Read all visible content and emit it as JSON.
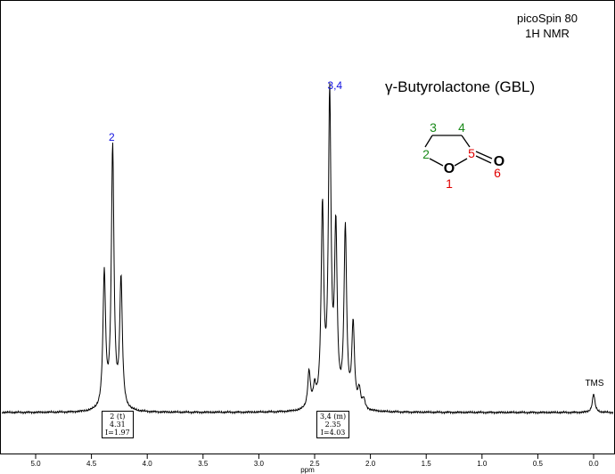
{
  "instrument": {
    "line1": "picoSpin 80",
    "line2": "1H NMR"
  },
  "compound": {
    "name": "γ-Butyrolactone (GBL)"
  },
  "structure": {
    "atoms": [
      {
        "label": "1",
        "color": "#e00000"
      },
      {
        "label": "2",
        "color": "#1a8a1a"
      },
      {
        "label": "3",
        "color": "#1a8a1a"
      },
      {
        "label": "4",
        "color": "#1a8a1a"
      },
      {
        "label": "5",
        "color": "#e00000"
      },
      {
        "label": "6",
        "color": "#e00000"
      }
    ],
    "ring_oxygen": "O",
    "carbonyl_oxygen": "O"
  },
  "peak_labels": [
    {
      "label": "2",
      "color": "#1010e0",
      "ppm": 4.31
    },
    {
      "label": "3,4",
      "color": "#1010e0",
      "ppm": 2.35
    },
    {
      "label": "TMS",
      "color": "#000000",
      "ppm": 0.0
    }
  ],
  "integrations": [
    {
      "line1": "2 (t)",
      "line2": "4.31",
      "line3": "I=1.97",
      "ppm": 4.31
    },
    {
      "line1": "3,4 (m)",
      "line2": "2.35",
      "line3": "I=4.03",
      "ppm": 2.35
    }
  ],
  "chart_data": {
    "type": "line",
    "title": "",
    "xlabel": "ppm",
    "ylabel": "",
    "xlim": [
      5.2,
      -0.1
    ],
    "x_reversed": true,
    "xticks": [
      "5.0",
      "4.5",
      "4.0",
      "3.5",
      "3.0",
      "2.5",
      "2.0",
      "1.5",
      "1.0",
      "0.5",
      "0.0"
    ],
    "series": [
      {
        "peaks": [
          {
            "ppm": 4.385,
            "height": 0.44
          },
          {
            "ppm": 4.31,
            "height": 0.85
          },
          {
            "ppm": 4.235,
            "height": 0.42
          },
          {
            "ppm": 2.55,
            "height": 0.12
          },
          {
            "ppm": 2.5,
            "height": 0.06
          },
          {
            "ppm": 2.43,
            "height": 0.64
          },
          {
            "ppm": 2.365,
            "height": 1.0
          },
          {
            "ppm": 2.31,
            "height": 0.56
          },
          {
            "ppm": 2.225,
            "height": 0.58
          },
          {
            "ppm": 2.155,
            "height": 0.27
          },
          {
            "ppm": 2.1,
            "height": 0.06
          },
          {
            "ppm": 2.06,
            "height": 0.03
          },
          {
            "ppm": 0.0,
            "height": 0.06
          }
        ]
      }
    ]
  }
}
